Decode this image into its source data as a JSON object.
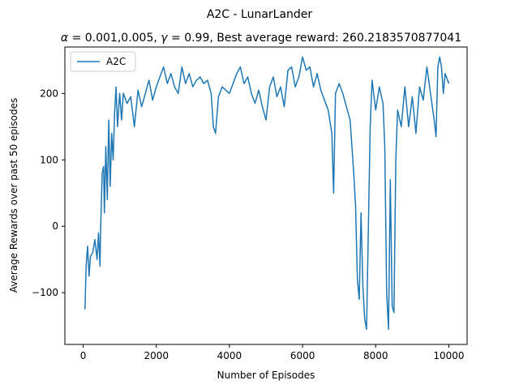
{
  "chart_data": {
    "type": "line",
    "suptitle": "A2C - LunarLander",
    "title": "α = 0.001,0.005, γ = 0.99,  Best average reward: 260.2183570877041",
    "title_parts": {
      "alpha_symbol": "α",
      "alpha_text": " = 0.001,0.005, ",
      "gamma_symbol": "γ",
      "rest_text": " = 0.99,  Best average reward: 260.2183570877041"
    },
    "xlabel": "Number of Episodes",
    "ylabel": "Average Rewards over past 50 episodes",
    "xlim": [
      -500,
      10500
    ],
    "ylim": [
      -178,
      270
    ],
    "x_ticks": [
      0,
      2000,
      4000,
      6000,
      8000,
      10000
    ],
    "y_ticks": [
      -100,
      0,
      100,
      200
    ],
    "x_tick_labels": [
      "0",
      "2000",
      "4000",
      "6000",
      "8000",
      "10000"
    ],
    "y_tick_labels": [
      "−100",
      "0",
      "100",
      "200"
    ],
    "grid": false,
    "legend_position": "upper left",
    "series": [
      {
        "name": "A2C",
        "color": "#1f77b4",
        "points": [
          [
            50,
            -125
          ],
          [
            80,
            -60
          ],
          [
            120,
            -30
          ],
          [
            160,
            -75
          ],
          [
            200,
            -45
          ],
          [
            260,
            -40
          ],
          [
            320,
            -20
          ],
          [
            380,
            -50
          ],
          [
            420,
            -10
          ],
          [
            460,
            -60
          ],
          [
            480,
            0
          ],
          [
            520,
            80
          ],
          [
            560,
            90
          ],
          [
            580,
            20
          ],
          [
            620,
            120
          ],
          [
            660,
            40
          ],
          [
            700,
            160
          ],
          [
            740,
            60
          ],
          [
            780,
            140
          ],
          [
            820,
            100
          ],
          [
            860,
            170
          ],
          [
            900,
            210
          ],
          [
            940,
            150
          ],
          [
            1000,
            200
          ],
          [
            1050,
            160
          ],
          [
            1100,
            200
          ],
          [
            1200,
            185
          ],
          [
            1300,
            195
          ],
          [
            1400,
            150
          ],
          [
            1500,
            205
          ],
          [
            1600,
            180
          ],
          [
            1700,
            200
          ],
          [
            1800,
            220
          ],
          [
            1900,
            190
          ],
          [
            2000,
            210
          ],
          [
            2100,
            225
          ],
          [
            2200,
            240
          ],
          [
            2300,
            215
          ],
          [
            2400,
            230
          ],
          [
            2500,
            210
          ],
          [
            2600,
            200
          ],
          [
            2700,
            240
          ],
          [
            2800,
            215
          ],
          [
            2900,
            230
          ],
          [
            3000,
            210
          ],
          [
            3100,
            220
          ],
          [
            3200,
            225
          ],
          [
            3300,
            215
          ],
          [
            3400,
            220
          ],
          [
            3500,
            200
          ],
          [
            3560,
            150
          ],
          [
            3620,
            140
          ],
          [
            3700,
            195
          ],
          [
            3800,
            210
          ],
          [
            3900,
            205
          ],
          [
            4000,
            200
          ],
          [
            4100,
            215
          ],
          [
            4200,
            230
          ],
          [
            4300,
            240
          ],
          [
            4400,
            215
          ],
          [
            4500,
            225
          ],
          [
            4600,
            200
          ],
          [
            4700,
            185
          ],
          [
            4800,
            205
          ],
          [
            4900,
            180
          ],
          [
            5000,
            160
          ],
          [
            5100,
            210
          ],
          [
            5200,
            225
          ],
          [
            5300,
            195
          ],
          [
            5400,
            210
          ],
          [
            5500,
            180
          ],
          [
            5600,
            235
          ],
          [
            5700,
            240
          ],
          [
            5800,
            210
          ],
          [
            5900,
            225
          ],
          [
            6000,
            255
          ],
          [
            6100,
            235
          ],
          [
            6200,
            240
          ],
          [
            6300,
            210
          ],
          [
            6400,
            230
          ],
          [
            6500,
            205
          ],
          [
            6600,
            190
          ],
          [
            6700,
            175
          ],
          [
            6800,
            140
          ],
          [
            6850,
            50
          ],
          [
            6900,
            200
          ],
          [
            7000,
            215
          ],
          [
            7100,
            200
          ],
          [
            7200,
            180
          ],
          [
            7300,
            160
          ],
          [
            7400,
            80
          ],
          [
            7450,
            30
          ],
          [
            7500,
            -80
          ],
          [
            7550,
            -110
          ],
          [
            7600,
            20
          ],
          [
            7650,
            -90
          ],
          [
            7700,
            -140
          ],
          [
            7750,
            -155
          ],
          [
            7800,
            0
          ],
          [
            7850,
            150
          ],
          [
            7900,
            220
          ],
          [
            8000,
            175
          ],
          [
            8100,
            210
          ],
          [
            8200,
            185
          ],
          [
            8250,
            120
          ],
          [
            8300,
            -100
          ],
          [
            8350,
            -155
          ],
          [
            8400,
            70
          ],
          [
            8450,
            -120
          ],
          [
            8500,
            -130
          ],
          [
            8550,
            100
          ],
          [
            8600,
            175
          ],
          [
            8700,
            150
          ],
          [
            8800,
            210
          ],
          [
            8900,
            150
          ],
          [
            9000,
            195
          ],
          [
            9100,
            140
          ],
          [
            9200,
            210
          ],
          [
            9300,
            190
          ],
          [
            9400,
            240
          ],
          [
            9500,
            200
          ],
          [
            9600,
            160
          ],
          [
            9650,
            135
          ],
          [
            9700,
            240
          ],
          [
            9750,
            255
          ],
          [
            9800,
            240
          ],
          [
            9850,
            200
          ],
          [
            9900,
            230
          ],
          [
            10000,
            215
          ]
        ]
      }
    ]
  }
}
